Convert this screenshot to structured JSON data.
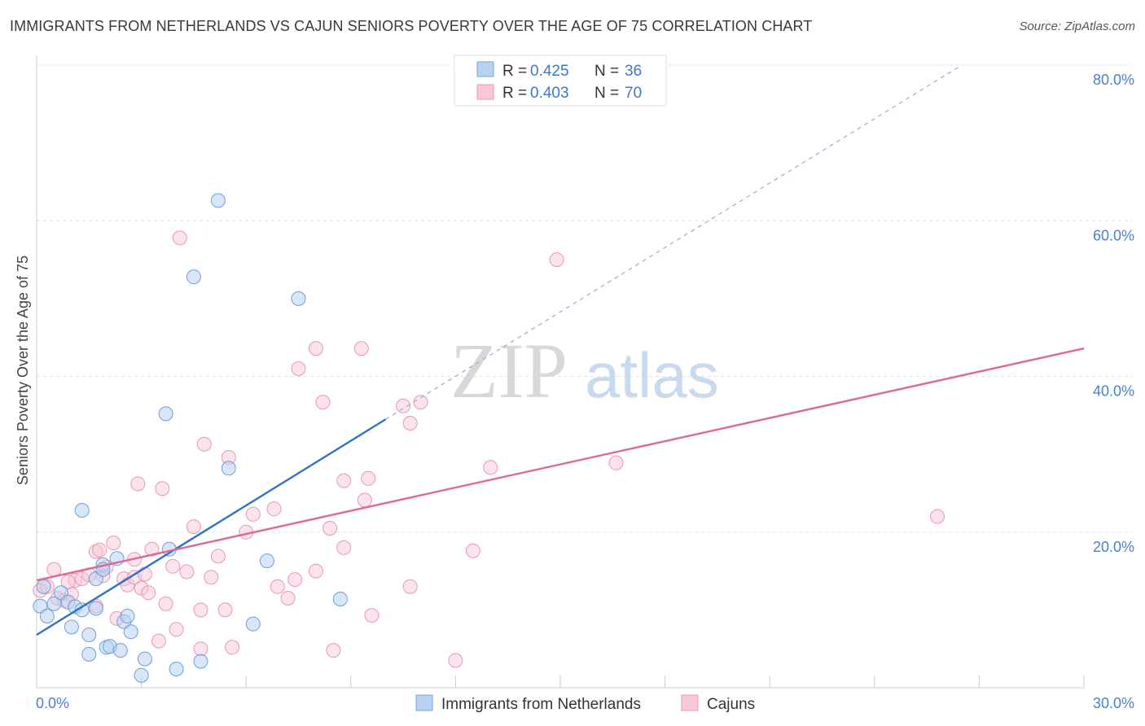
{
  "header": {
    "title": "IMMIGRANTS FROM NETHERLANDS VS CAJUN SENIORS POVERTY OVER THE AGE OF 75 CORRELATION CHART",
    "source": "Source: ZipAtlas.com"
  },
  "watermark": {
    "zip": "ZIP",
    "atlas": "atlas"
  },
  "colors": {
    "blue": "#3d78c8",
    "blue_fill": "#b8d2f2",
    "pink": "#e06890",
    "pink_fill": "#f8c8d8",
    "tick_text": "#4a7fc9"
  },
  "legend": {
    "entries": [
      {
        "r_label": "R =",
        "r_value": "0.425",
        "n_label": "N =",
        "n_value": "36"
      },
      {
        "r_label": "R =",
        "r_value": "0.403",
        "n_label": "N =",
        "n_value": "70"
      }
    ]
  },
  "chart_data": {
    "type": "scatter",
    "title": "IMMIGRANTS FROM NETHERLANDS VS CAJUN SENIORS POVERTY OVER THE AGE OF 75 CORRELATION CHART",
    "xlabel": "",
    "ylabel": "Seniors Poverty Over the Age of 75",
    "xlim": [
      0,
      30
    ],
    "ylim": [
      0,
      80
    ],
    "x_tick_labels": [
      {
        "value": 0,
        "label": "0.0%"
      },
      {
        "value": 30,
        "label": "30.0%"
      }
    ],
    "y_tick_labels": [
      {
        "value": 20,
        "label": "20.0%"
      },
      {
        "value": 40,
        "label": "40.0%"
      },
      {
        "value": 60,
        "label": "60.0%"
      },
      {
        "value": 80,
        "label": "80.0%"
      }
    ],
    "grid": true,
    "series": [
      {
        "name": "Immigrants from Netherlands",
        "color": "#3d78c8",
        "R": 0.425,
        "N": 36,
        "trend": {
          "x0": 0,
          "y0": 6.8,
          "x1": 10.0,
          "y1": 34.5,
          "dashed_to_x": 26.5,
          "dashed_to_y": 80.0
        },
        "points": [
          [
            0.1,
            10.5
          ],
          [
            0.3,
            9.2
          ],
          [
            0.5,
            10.8
          ],
          [
            0.7,
            12.2
          ],
          [
            0.9,
            11.0
          ],
          [
            1.0,
            7.8
          ],
          [
            1.1,
            10.4
          ],
          [
            1.3,
            10.0
          ],
          [
            1.3,
            22.8
          ],
          [
            1.5,
            6.8
          ],
          [
            1.5,
            4.3
          ],
          [
            1.7,
            14.0
          ],
          [
            1.7,
            10.2
          ],
          [
            1.9,
            15.8
          ],
          [
            2.0,
            5.2
          ],
          [
            2.1,
            5.3
          ],
          [
            2.3,
            16.6
          ],
          [
            2.4,
            4.8
          ],
          [
            2.5,
            8.5
          ],
          [
            2.6,
            9.2
          ],
          [
            2.7,
            7.2
          ],
          [
            3.0,
            1.6
          ],
          [
            3.1,
            3.7
          ],
          [
            3.7,
            35.2
          ],
          [
            3.8,
            17.8
          ],
          [
            4.0,
            2.4
          ],
          [
            4.5,
            52.8
          ],
          [
            4.7,
            3.4
          ],
          [
            5.2,
            62.6
          ],
          [
            5.5,
            28.2
          ],
          [
            6.2,
            8.2
          ],
          [
            6.6,
            16.3
          ],
          [
            7.5,
            50.0
          ],
          [
            8.7,
            11.4
          ],
          [
            0.2,
            13.0
          ],
          [
            1.9,
            15.2
          ]
        ]
      },
      {
        "name": "Cajuns",
        "color": "#e06890",
        "R": 0.403,
        "N": 70,
        "trend": {
          "x0": 0,
          "y0": 13.8,
          "x1": 30,
          "y1": 43.6
        },
        "points": [
          [
            0.1,
            12.5
          ],
          [
            0.3,
            13.0
          ],
          [
            0.5,
            15.2
          ],
          [
            0.6,
            11.5
          ],
          [
            0.8,
            11.2
          ],
          [
            1.0,
            12.0
          ],
          [
            1.1,
            13.8
          ],
          [
            1.3,
            14.0
          ],
          [
            1.5,
            14.5
          ],
          [
            1.7,
            10.5
          ],
          [
            1.7,
            17.5
          ],
          [
            1.8,
            17.7
          ],
          [
            1.9,
            14.4
          ],
          [
            2.0,
            15.5
          ],
          [
            2.2,
            18.6
          ],
          [
            2.3,
            8.9
          ],
          [
            2.5,
            14.0
          ],
          [
            2.6,
            13.2
          ],
          [
            2.8,
            14.2
          ],
          [
            2.9,
            26.2
          ],
          [
            3.0,
            12.8
          ],
          [
            3.1,
            14.6
          ],
          [
            3.2,
            12.2
          ],
          [
            3.3,
            17.8
          ],
          [
            3.5,
            6.0
          ],
          [
            3.6,
            25.6
          ],
          [
            3.7,
            10.8
          ],
          [
            3.9,
            15.6
          ],
          [
            4.0,
            7.5
          ],
          [
            4.1,
            57.8
          ],
          [
            4.3,
            14.9
          ],
          [
            4.5,
            20.7
          ],
          [
            4.7,
            5.0
          ],
          [
            4.8,
            31.3
          ],
          [
            5.0,
            14.2
          ],
          [
            5.2,
            16.9
          ],
          [
            5.4,
            10.0
          ],
          [
            5.5,
            29.6
          ],
          [
            5.6,
            5.2
          ],
          [
            6.0,
            20.0
          ],
          [
            6.2,
            22.3
          ],
          [
            6.8,
            23.0
          ],
          [
            6.9,
            13.0
          ],
          [
            7.2,
            11.5
          ],
          [
            7.4,
            13.9
          ],
          [
            7.5,
            41.0
          ],
          [
            8.0,
            43.6
          ],
          [
            8.0,
            15.0
          ],
          [
            8.2,
            36.7
          ],
          [
            8.4,
            20.5
          ],
          [
            8.5,
            4.8
          ],
          [
            8.8,
            26.6
          ],
          [
            8.8,
            18.0
          ],
          [
            9.3,
            43.6
          ],
          [
            9.4,
            24.1
          ],
          [
            9.5,
            26.9
          ],
          [
            9.6,
            9.3
          ],
          [
            10.5,
            36.2
          ],
          [
            10.7,
            34.0
          ],
          [
            10.7,
            13.0
          ],
          [
            11.0,
            36.7
          ],
          [
            12.0,
            3.5
          ],
          [
            12.5,
            17.6
          ],
          [
            13.0,
            28.3
          ],
          [
            14.9,
            55.0
          ],
          [
            16.6,
            28.9
          ],
          [
            25.8,
            22.0
          ],
          [
            0.9,
            13.6
          ],
          [
            2.8,
            16.5
          ],
          [
            4.7,
            10.0
          ]
        ]
      }
    ]
  },
  "bottom_legend": {
    "items": [
      {
        "label": "Immigrants from Netherlands"
      },
      {
        "label": "Cajuns"
      }
    ]
  }
}
